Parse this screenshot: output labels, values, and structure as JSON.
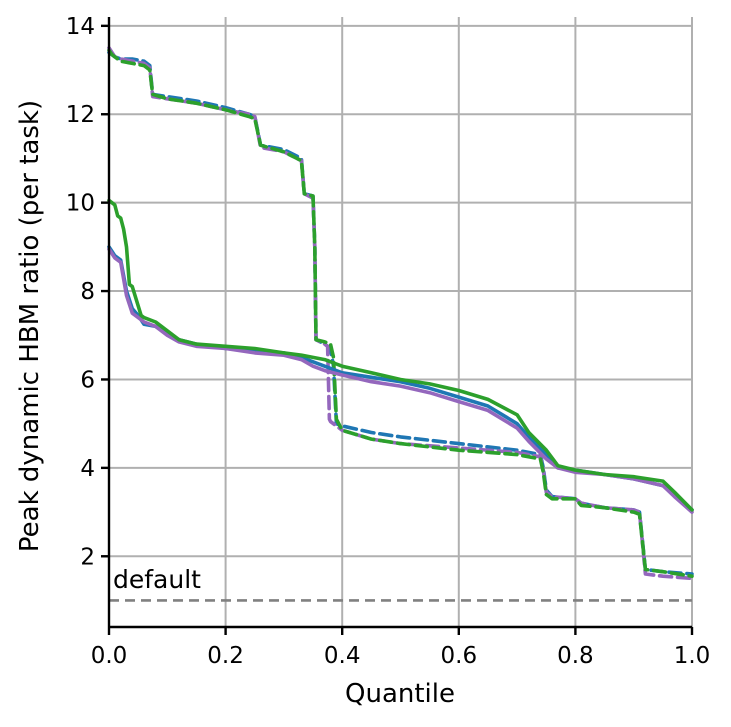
{
  "chart_data": {
    "type": "line",
    "title": "",
    "xlabel": "Quantile",
    "ylabel": "Peak dynamic HBM ratio (per task)",
    "xlim": [
      0,
      1
    ],
    "ylim": [
      0.4,
      14.2
    ],
    "grid": true,
    "legend": "none",
    "x_ticks": [
      0.0,
      0.2,
      0.4,
      0.6,
      0.8,
      1.0
    ],
    "x_tick_labels": [
      "0.0",
      "0.2",
      "0.4",
      "0.6",
      "0.8",
      "1.0"
    ],
    "y_ticks": [
      2,
      4,
      6,
      8,
      10,
      12,
      14
    ],
    "y_tick_labels": [
      "2",
      "4",
      "6",
      "8",
      "10",
      "12",
      "14"
    ],
    "annotations": [
      {
        "text": "default",
        "x": 0.01,
        "y": 1.0
      }
    ],
    "reference_line": {
      "y": 1.0,
      "color": "#808080",
      "style": "dashed"
    },
    "series": [
      {
        "color": "#1f77b4",
        "style": "dashed",
        "x": [
          0,
          0.005,
          0.01,
          0.02,
          0.04,
          0.06,
          0.07,
          0.075,
          0.1,
          0.15,
          0.2,
          0.24,
          0.25,
          0.26,
          0.3,
          0.33,
          0.335,
          0.35,
          0.353,
          0.355,
          0.37,
          0.38,
          0.385,
          0.39,
          0.4,
          0.45,
          0.5,
          0.6,
          0.7,
          0.74,
          0.745,
          0.75,
          0.76,
          0.8,
          0.81,
          0.85,
          0.9,
          0.91,
          0.92,
          0.95,
          1.0
        ],
        "y": [
          13.4,
          13.35,
          13.3,
          13.25,
          13.25,
          13.2,
          13.1,
          12.45,
          12.4,
          12.3,
          12.15,
          12.0,
          11.95,
          11.3,
          11.2,
          11.0,
          10.2,
          10.15,
          9.0,
          6.9,
          6.8,
          6.7,
          6.3,
          5.0,
          4.95,
          4.8,
          4.7,
          4.55,
          4.4,
          4.3,
          4.0,
          3.5,
          3.35,
          3.3,
          3.2,
          3.1,
          3.05,
          3.0,
          1.7,
          1.65,
          1.6
        ]
      },
      {
        "color": "#9467bd",
        "style": "dashed",
        "x": [
          0,
          0.005,
          0.01,
          0.02,
          0.04,
          0.06,
          0.07,
          0.075,
          0.1,
          0.15,
          0.2,
          0.24,
          0.25,
          0.26,
          0.3,
          0.33,
          0.335,
          0.35,
          0.353,
          0.355,
          0.37,
          0.375,
          0.378,
          0.38,
          0.4,
          0.45,
          0.5,
          0.6,
          0.7,
          0.74,
          0.745,
          0.75,
          0.76,
          0.8,
          0.81,
          0.85,
          0.9,
          0.91,
          0.92,
          0.95,
          1.0
        ],
        "y": [
          13.5,
          13.4,
          13.3,
          13.25,
          13.2,
          13.15,
          13.05,
          12.4,
          12.35,
          12.25,
          12.1,
          12.0,
          11.95,
          11.25,
          11.15,
          10.95,
          10.2,
          10.1,
          9.0,
          6.9,
          6.8,
          6.75,
          5.1,
          5.05,
          4.85,
          4.65,
          4.55,
          4.45,
          4.35,
          4.25,
          3.95,
          3.45,
          3.35,
          3.3,
          3.2,
          3.1,
          3.05,
          3.0,
          1.6,
          1.55,
          1.5
        ]
      },
      {
        "color": "#2ca02c",
        "style": "dashed",
        "x": [
          0,
          0.005,
          0.01,
          0.02,
          0.04,
          0.06,
          0.07,
          0.075,
          0.1,
          0.15,
          0.2,
          0.24,
          0.25,
          0.26,
          0.3,
          0.33,
          0.335,
          0.35,
          0.353,
          0.355,
          0.37,
          0.38,
          0.385,
          0.39,
          0.4,
          0.45,
          0.5,
          0.6,
          0.7,
          0.74,
          0.745,
          0.75,
          0.76,
          0.8,
          0.81,
          0.85,
          0.9,
          0.91,
          0.92,
          0.95,
          1.0
        ],
        "y": [
          13.45,
          13.35,
          13.3,
          13.2,
          13.15,
          13.1,
          13.0,
          12.45,
          12.35,
          12.25,
          12.1,
          11.95,
          11.9,
          11.3,
          11.15,
          10.95,
          10.2,
          10.15,
          9.0,
          6.9,
          6.85,
          6.8,
          6.5,
          5.1,
          4.85,
          4.65,
          4.55,
          4.4,
          4.3,
          4.2,
          3.9,
          3.4,
          3.3,
          3.3,
          3.15,
          3.1,
          3.0,
          2.95,
          1.7,
          1.65,
          1.55
        ]
      },
      {
        "color": "#1f77b4",
        "style": "solid",
        "x": [
          0,
          0.005,
          0.01,
          0.02,
          0.03,
          0.04,
          0.05,
          0.06,
          0.08,
          0.1,
          0.12,
          0.15,
          0.2,
          0.25,
          0.3,
          0.33,
          0.35,
          0.37,
          0.4,
          0.45,
          0.5,
          0.55,
          0.6,
          0.65,
          0.7,
          0.72,
          0.75,
          0.77,
          0.8,
          0.85,
          0.9,
          0.95,
          0.97,
          1.0
        ],
        "y": [
          9.0,
          8.9,
          8.8,
          8.7,
          8.0,
          7.6,
          7.45,
          7.25,
          7.2,
          7.05,
          6.9,
          6.8,
          6.7,
          6.65,
          6.6,
          6.5,
          6.4,
          6.3,
          6.15,
          6.05,
          5.95,
          5.8,
          5.6,
          5.4,
          5.0,
          4.7,
          4.3,
          4.0,
          3.95,
          3.85,
          3.75,
          3.6,
          3.4,
          3.05
        ]
      },
      {
        "color": "#9467bd",
        "style": "solid",
        "x": [
          0,
          0.005,
          0.01,
          0.02,
          0.03,
          0.04,
          0.05,
          0.06,
          0.08,
          0.1,
          0.12,
          0.15,
          0.2,
          0.25,
          0.3,
          0.33,
          0.35,
          0.37,
          0.4,
          0.45,
          0.5,
          0.55,
          0.6,
          0.65,
          0.7,
          0.72,
          0.75,
          0.77,
          0.8,
          0.85,
          0.9,
          0.95,
          0.97,
          1.0
        ],
        "y": [
          8.95,
          8.85,
          8.75,
          8.65,
          7.9,
          7.5,
          7.4,
          7.3,
          7.2,
          7.0,
          6.85,
          6.75,
          6.7,
          6.6,
          6.55,
          6.45,
          6.3,
          6.2,
          6.1,
          5.95,
          5.85,
          5.7,
          5.5,
          5.3,
          4.9,
          4.6,
          4.2,
          4.0,
          3.9,
          3.85,
          3.75,
          3.6,
          3.35,
          3.0
        ]
      },
      {
        "color": "#2ca02c",
        "style": "solid",
        "x": [
          0,
          0.005,
          0.01,
          0.015,
          0.02,
          0.025,
          0.03,
          0.035,
          0.04,
          0.055,
          0.06,
          0.08,
          0.1,
          0.12,
          0.15,
          0.2,
          0.25,
          0.3,
          0.33,
          0.35,
          0.37,
          0.39,
          0.4,
          0.45,
          0.5,
          0.55,
          0.6,
          0.65,
          0.7,
          0.72,
          0.75,
          0.77,
          0.8,
          0.85,
          0.9,
          0.95,
          0.97,
          1.0
        ],
        "y": [
          10.05,
          10.0,
          9.95,
          9.7,
          9.65,
          9.4,
          9.0,
          8.15,
          8.1,
          7.45,
          7.4,
          7.3,
          7.1,
          6.9,
          6.8,
          6.75,
          6.7,
          6.6,
          6.55,
          6.5,
          6.45,
          6.35,
          6.3,
          6.15,
          6.0,
          5.9,
          5.75,
          5.55,
          5.2,
          4.8,
          4.4,
          4.05,
          3.95,
          3.85,
          3.8,
          3.7,
          3.45,
          3.05
        ]
      }
    ]
  }
}
